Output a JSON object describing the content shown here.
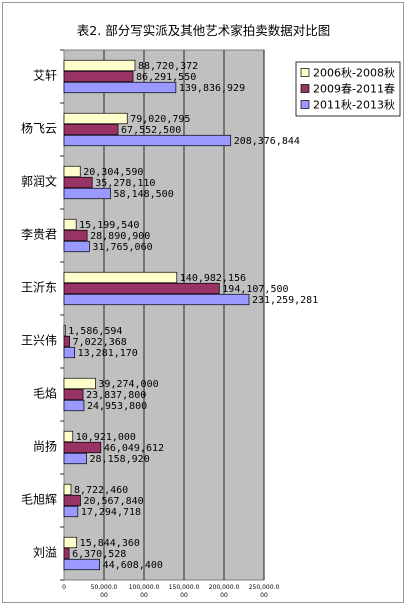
{
  "chart_data": {
    "type": "bar",
    "orientation": "horizontal",
    "title": "表2. 部分写实派及其他艺术家拍卖数据对比图",
    "categories": [
      "艾轩",
      "杨飞云",
      "郭润文",
      "李贵君",
      "王沂东",
      "王兴伟",
      "毛焰",
      "尚扬",
      "毛旭辉",
      "刘溢"
    ],
    "series": [
      {
        "name": "2006秋-2008秋",
        "color": "#ffffcc",
        "values": [
          88720372,
          79020795,
          20304590,
          15199540,
          140982156,
          1586594,
          39274000,
          10921000,
          8722460,
          15844360
        ],
        "labels": [
          "88,720,372",
          "79,020,795",
          "20,304,590",
          "15,199,540",
          "140,982,156",
          "1,586,594",
          "39,274,000",
          "10,921,000",
          "8,722,460",
          "15,844,360"
        ]
      },
      {
        "name": "2009春-2011春",
        "color": "#993366",
        "values": [
          86291550,
          67552500,
          35278110,
          28890900,
          194107500,
          7022368,
          23837800,
          46049612,
          20567840,
          6370528
        ],
        "labels": [
          "86,291,550",
          "67,552,500",
          "35,278,110",
          "28,890,900",
          "194,107,500",
          "7,022,368",
          "23,837,800",
          "46,049,612",
          "20,567,840",
          "6,370,528"
        ]
      },
      {
        "name": "2011秋-2013秋",
        "color": "#9999ff",
        "values": [
          139836929,
          208376844,
          58148500,
          31765060,
          231259281,
          13281170,
          24953800,
          28158920,
          17294718,
          44608400
        ],
        "labels": [
          "139,836,929",
          "208,376,844",
          "58,148,500",
          "31,765,060",
          "231,259,281",
          "13,281,170",
          "24,953,800",
          "28,158,920",
          "17,294,718",
          "44,608,400"
        ]
      }
    ],
    "xlim": [
      0,
      250000000
    ],
    "xticks": [
      0,
      50000000,
      100000000,
      150000000,
      200000000,
      250000000
    ],
    "xtick_labels": [
      "0",
      "50,000.0\n00",
      "100,000.0\n00",
      "150,000.0\n00",
      "200,000.0\n00",
      "250,000.0\n00"
    ],
    "grid": true,
    "legend_position": "top-right",
    "plot_background": "#c0c0c0"
  }
}
